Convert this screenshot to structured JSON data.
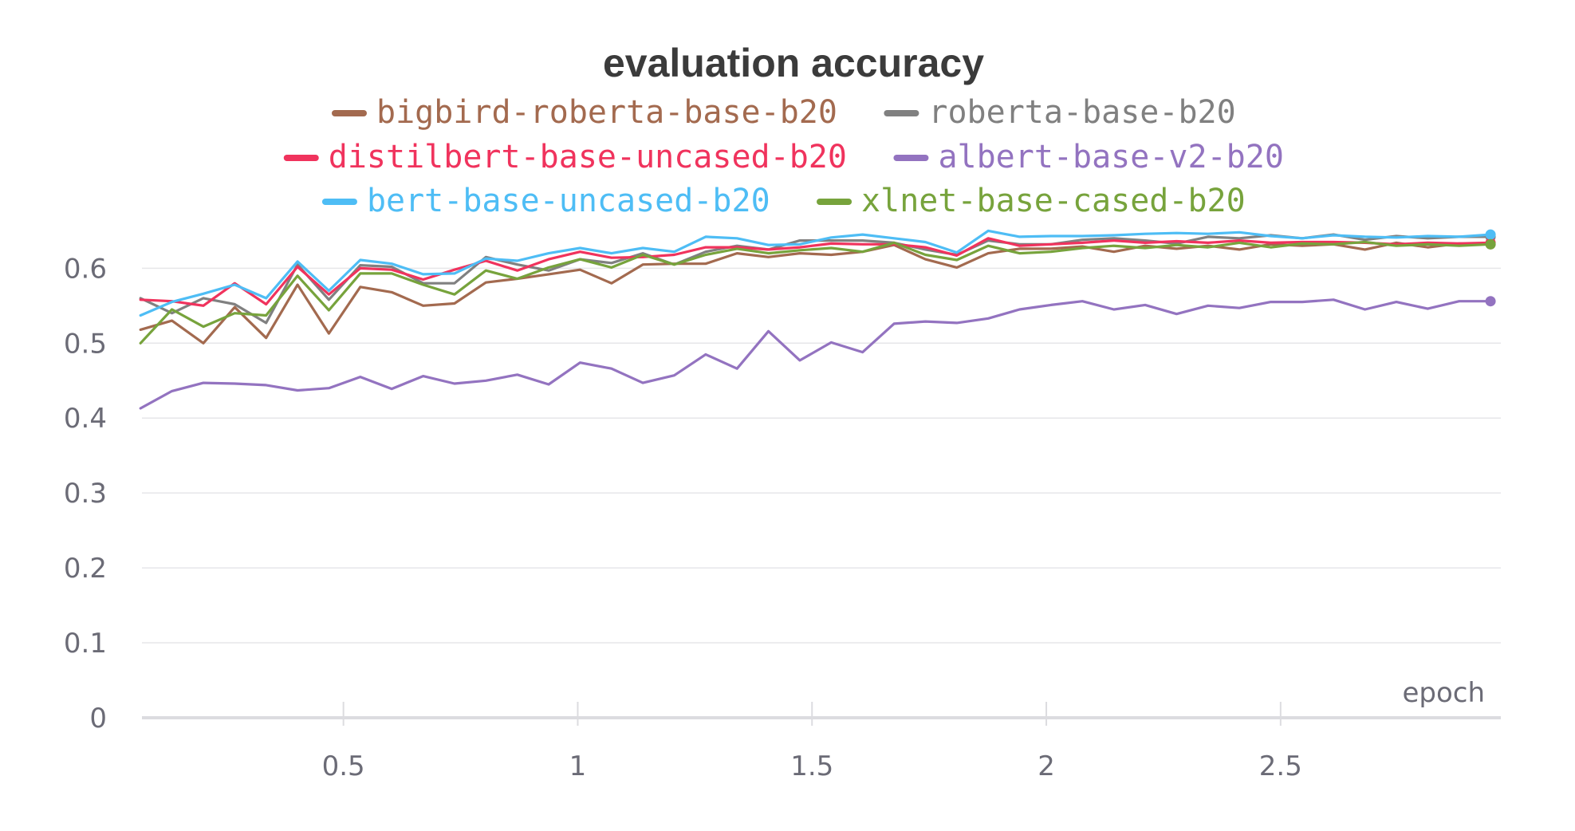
{
  "chart_data": {
    "type": "line",
    "title": "evaluation accuracy",
    "xlabel": "epoch",
    "ylabel": "",
    "xlim": [
      0.07,
      2.97
    ],
    "ylim": [
      0,
      0.66
    ],
    "grid": true,
    "legend_position": "top",
    "x_ticks": [
      0.5,
      1,
      1.5,
      2,
      2.5
    ],
    "x_tick_labels": [
      "0.5",
      "1",
      "1.5",
      "2",
      "2.5"
    ],
    "y_ticks": [
      0,
      0.1,
      0.2,
      0.3,
      0.4,
      0.5,
      0.6
    ],
    "y_tick_labels": [
      "0",
      "0.1",
      "0.2",
      "0.3",
      "0.4",
      "0.5",
      "0.6"
    ],
    "x": [
      0.067,
      0.134,
      0.201,
      0.268,
      0.335,
      0.402,
      0.469,
      0.536,
      0.603,
      0.67,
      0.737,
      0.804,
      0.871,
      0.938,
      1.005,
      1.072,
      1.139,
      1.206,
      1.273,
      1.34,
      1.407,
      1.474,
      1.541,
      1.608,
      1.675,
      1.742,
      1.809,
      1.876,
      1.943,
      2.01,
      2.077,
      2.144,
      2.211,
      2.278,
      2.345,
      2.412,
      2.479,
      2.546,
      2.613,
      2.68,
      2.747,
      2.814,
      2.881,
      2.948
    ],
    "series": [
      {
        "name": "bigbird-roberta-base-b20",
        "color": "#a36a4f",
        "values": [
          0.518,
          0.53,
          0.5,
          0.548,
          0.507,
          0.578,
          0.513,
          0.575,
          0.568,
          0.55,
          0.553,
          0.581,
          0.586,
          0.592,
          0.598,
          0.58,
          0.605,
          0.606,
          0.606,
          0.62,
          0.615,
          0.62,
          0.618,
          0.622,
          0.631,
          0.612,
          0.601,
          0.62,
          0.626,
          0.626,
          0.629,
          0.622,
          0.63,
          0.626,
          0.63,
          0.625,
          0.632,
          0.63,
          0.632,
          0.625,
          0.634,
          0.628,
          0.633,
          0.632
        ]
      },
      {
        "name": "roberta-base-b20",
        "color": "#808080",
        "values": [
          0.56,
          0.54,
          0.56,
          0.552,
          0.527,
          0.605,
          0.558,
          0.604,
          0.602,
          0.58,
          0.58,
          0.615,
          0.605,
          0.597,
          0.612,
          0.607,
          0.62,
          0.605,
          0.622,
          0.63,
          0.625,
          0.637,
          0.637,
          0.637,
          0.634,
          0.625,
          0.618,
          0.637,
          0.632,
          0.632,
          0.638,
          0.64,
          0.637,
          0.633,
          0.642,
          0.64,
          0.644,
          0.64,
          0.645,
          0.638,
          0.643,
          0.64,
          0.642,
          0.642
        ]
      },
      {
        "name": "distilbert-base-uncased-b20",
        "color": "#f0335d",
        "values": [
          0.558,
          0.556,
          0.55,
          0.58,
          0.552,
          0.602,
          0.565,
          0.6,
          0.598,
          0.585,
          0.598,
          0.61,
          0.597,
          0.612,
          0.622,
          0.614,
          0.615,
          0.618,
          0.628,
          0.628,
          0.625,
          0.628,
          0.633,
          0.632,
          0.632,
          0.628,
          0.617,
          0.64,
          0.63,
          0.632,
          0.634,
          0.637,
          0.634,
          0.636,
          0.634,
          0.637,
          0.634,
          0.635,
          0.635,
          0.634,
          0.632,
          0.634,
          0.633,
          0.634
        ]
      },
      {
        "name": "albert-base-v2-b20",
        "color": "#9373c0",
        "values": [
          0.413,
          0.436,
          0.447,
          0.446,
          0.444,
          0.437,
          0.44,
          0.455,
          0.439,
          0.456,
          0.446,
          0.45,
          0.458,
          0.445,
          0.474,
          0.466,
          0.447,
          0.457,
          0.485,
          0.466,
          0.516,
          0.477,
          0.501,
          0.488,
          0.526,
          0.529,
          0.527,
          0.533,
          0.545,
          0.551,
          0.556,
          0.545,
          0.551,
          0.539,
          0.55,
          0.547,
          0.555,
          0.555,
          0.558,
          0.545,
          0.555,
          0.546,
          0.556,
          0.556
        ]
      },
      {
        "name": "bert-base-uncased-b20",
        "color": "#4ebdf5",
        "values": [
          0.537,
          0.555,
          0.566,
          0.578,
          0.56,
          0.609,
          0.57,
          0.611,
          0.606,
          0.592,
          0.593,
          0.613,
          0.61,
          0.62,
          0.627,
          0.62,
          0.627,
          0.622,
          0.642,
          0.64,
          0.631,
          0.632,
          0.641,
          0.645,
          0.64,
          0.635,
          0.621,
          0.65,
          0.642,
          0.643,
          0.643,
          0.644,
          0.646,
          0.647,
          0.646,
          0.648,
          0.643,
          0.64,
          0.644,
          0.642,
          0.641,
          0.643,
          0.642,
          0.645
        ]
      },
      {
        "name": "xlnet-base-cased-b20",
        "color": "#77a33c",
        "values": [
          0.5,
          0.545,
          0.522,
          0.54,
          0.537,
          0.59,
          0.544,
          0.593,
          0.593,
          0.578,
          0.565,
          0.597,
          0.586,
          0.601,
          0.612,
          0.601,
          0.618,
          0.605,
          0.618,
          0.626,
          0.62,
          0.624,
          0.627,
          0.622,
          0.634,
          0.618,
          0.611,
          0.63,
          0.62,
          0.622,
          0.627,
          0.63,
          0.627,
          0.631,
          0.628,
          0.634,
          0.628,
          0.633,
          0.632,
          0.635,
          0.63,
          0.632,
          0.63,
          0.632
        ]
      }
    ]
  }
}
